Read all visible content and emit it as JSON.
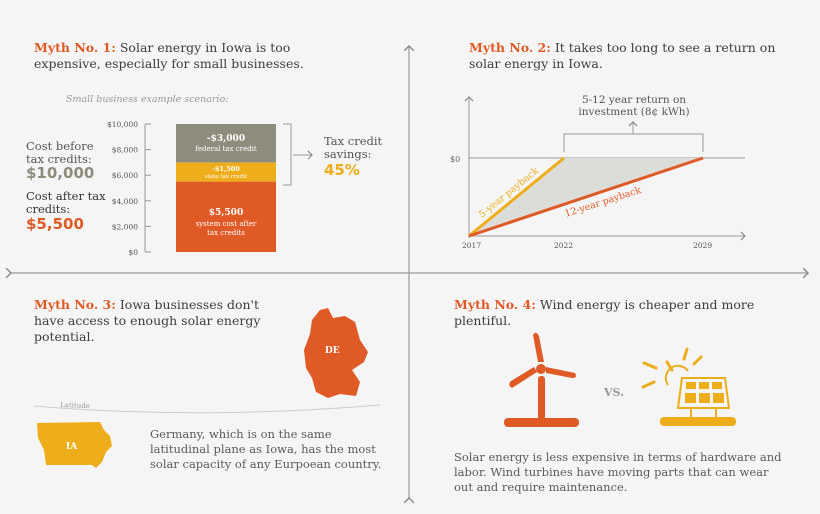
{
  "colors": {
    "orange": "#e05a25",
    "yellow": "#eeae1c",
    "gray": "#8e8c7d",
    "background": "#f5f5f5"
  },
  "myth1": {
    "label": "Myth No. 1:",
    "text": "Solar energy in Iowa is too expensive, especially for small businesses.",
    "scenario": "Small business example scenario:",
    "cost_before_label": "Cost before tax credits:",
    "cost_before_value": "$10,000",
    "cost_after_label": "Cost after tax credits:",
    "cost_after_value": "$5,500",
    "savings_label": "Tax credit savings:",
    "savings_value": "45%"
  },
  "myth2": {
    "label": "Myth No. 2:",
    "text": "It takes too long to see a return on solar energy in Iowa.",
    "annotation": "5-12 year return on investment (8¢ kWh)"
  },
  "myth3": {
    "label": "Myth No. 3:",
    "text": "Iowa businesses don't have access to enough solar energy potential.",
    "germany_label": "DE",
    "iowa_label": "IA",
    "latitude_label": "Latitude",
    "body": "Germany, which is on the same latitudinal plane as Iowa, has the most solar capacity of any Eurpoean country."
  },
  "myth4": {
    "label": "Myth No. 4:",
    "text": "Wind energy is cheaper and more plentiful.",
    "vs": "VS.",
    "icons": [
      "wind-turbine-icon",
      "solar-panel-icon"
    ],
    "body": "Solar energy is less expensive in terms of hardware and labor. Wind turbines have moving parts that can wear out and require maintenance."
  },
  "chart_data": [
    {
      "type": "bar",
      "stacked": true,
      "title": "Small business example scenario:",
      "yticks": [
        "$0",
        "$2,000",
        "$4,000",
        "$6,000",
        "$8,000",
        "$10,000"
      ],
      "ylim": [
        0,
        10000
      ],
      "segments": [
        {
          "value": 5500,
          "label": "$5,500",
          "sublabel": "system cost after tax credits",
          "color": "#e05a25"
        },
        {
          "value": 1500,
          "label": "-$1,500",
          "sublabel": "state tax credit",
          "color": "#eeae1c"
        },
        {
          "value": 3000,
          "label": "-$3,000",
          "sublabel": "federal tax credit",
          "color": "#8e8c7d"
        }
      ]
    },
    {
      "type": "line",
      "xticks": [
        "2017",
        "2022",
        "2029"
      ],
      "yticks": [
        "$0"
      ],
      "series": [
        {
          "name": "5-year payback",
          "x": [
            2017,
            2022
          ],
          "y": [
            "start",
            "$0"
          ],
          "color": "#eeae1c"
        },
        {
          "name": "12-year payback",
          "x": [
            2017,
            2029
          ],
          "y": [
            "start",
            "$0"
          ],
          "color": "#e05a25"
        }
      ]
    }
  ]
}
